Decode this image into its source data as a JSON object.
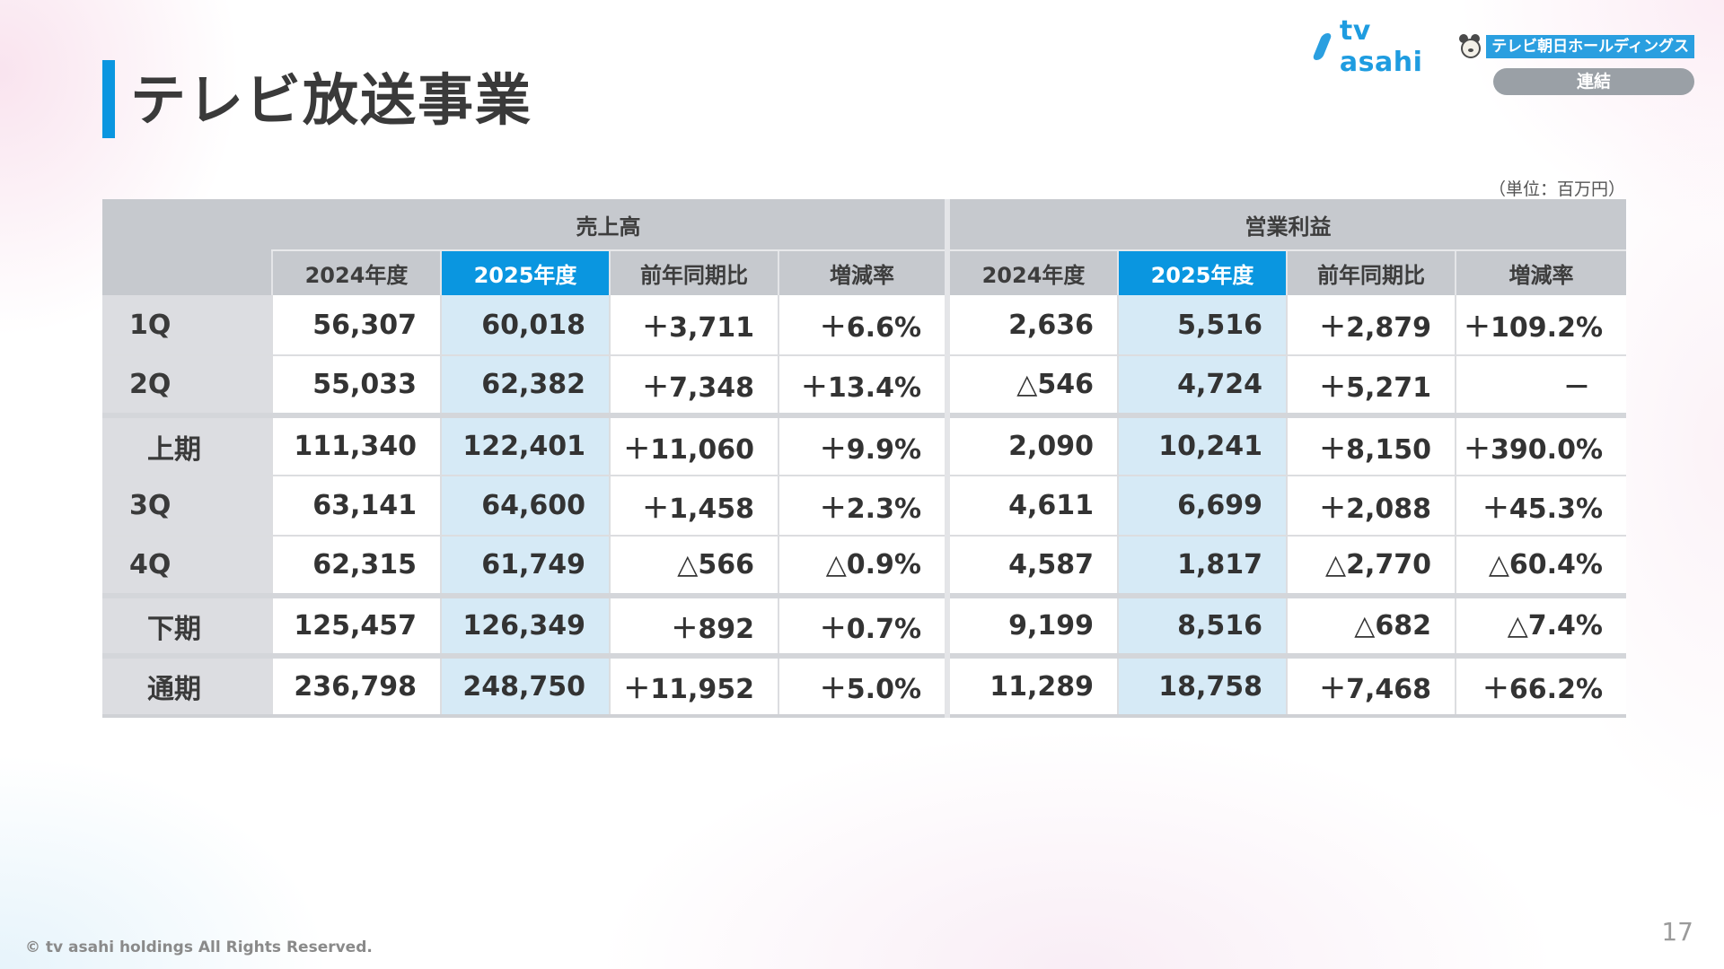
{
  "header": {
    "title": "テレビ放送事業",
    "logo_text": "tv asahi",
    "logo_company": "テレビ朝日ホールディングス",
    "badge": "連結"
  },
  "unit": "（単位：百万円）",
  "table": {
    "groups": [
      "売上高",
      "営業利益"
    ],
    "columns": [
      "2024年度",
      "2025年度",
      "前年同期比",
      "増減率"
    ],
    "rows": [
      {
        "label": "1Q",
        "subtotal": false,
        "sales": [
          "56,307",
          "60,018",
          "＋3,711",
          "＋6.6%"
        ],
        "profit": [
          "2,636",
          "5,516",
          "＋2,879",
          "＋109.2%"
        ]
      },
      {
        "label": "2Q",
        "subtotal": false,
        "sales": [
          "55,033",
          "62,382",
          "＋7,348",
          "＋13.4%"
        ],
        "profit": [
          "△546",
          "4,724",
          "＋5,271",
          "－"
        ]
      },
      {
        "label": "上期",
        "subtotal": true,
        "sales": [
          "111,340",
          "122,401",
          "＋11,060",
          "＋9.9%"
        ],
        "profit": [
          "2,090",
          "10,241",
          "＋8,150",
          "＋390.0%"
        ]
      },
      {
        "label": "3Q",
        "subtotal": false,
        "sales": [
          "63,141",
          "64,600",
          "＋1,458",
          "＋2.3%"
        ],
        "profit": [
          "4,611",
          "6,699",
          "＋2,088",
          "＋45.3%"
        ]
      },
      {
        "label": "4Q",
        "subtotal": false,
        "sales": [
          "62,315",
          "61,749",
          "△566",
          "△0.9%"
        ],
        "profit": [
          "4,587",
          "1,817",
          "△2,770",
          "△60.4%"
        ]
      },
      {
        "label": "下期",
        "subtotal": true,
        "sales": [
          "125,457",
          "126,349",
          "＋892",
          "＋0.7%"
        ],
        "profit": [
          "9,199",
          "8,516",
          "△682",
          "△7.4%"
        ]
      },
      {
        "label": "通期",
        "subtotal": true,
        "sales": [
          "236,798",
          "248,750",
          "＋11,952",
          "＋5.0%"
        ],
        "profit": [
          "11,289",
          "18,758",
          "＋7,468",
          "＋66.2%"
        ]
      }
    ]
  },
  "footer": {
    "copyright": "© tv asahi holdings All Rights Reserved.",
    "page_number": "17"
  },
  "colors": {
    "accent": "#0a96e0",
    "header_gray": "#c6c9ce",
    "highlight_cell": "#d6eaf6"
  }
}
